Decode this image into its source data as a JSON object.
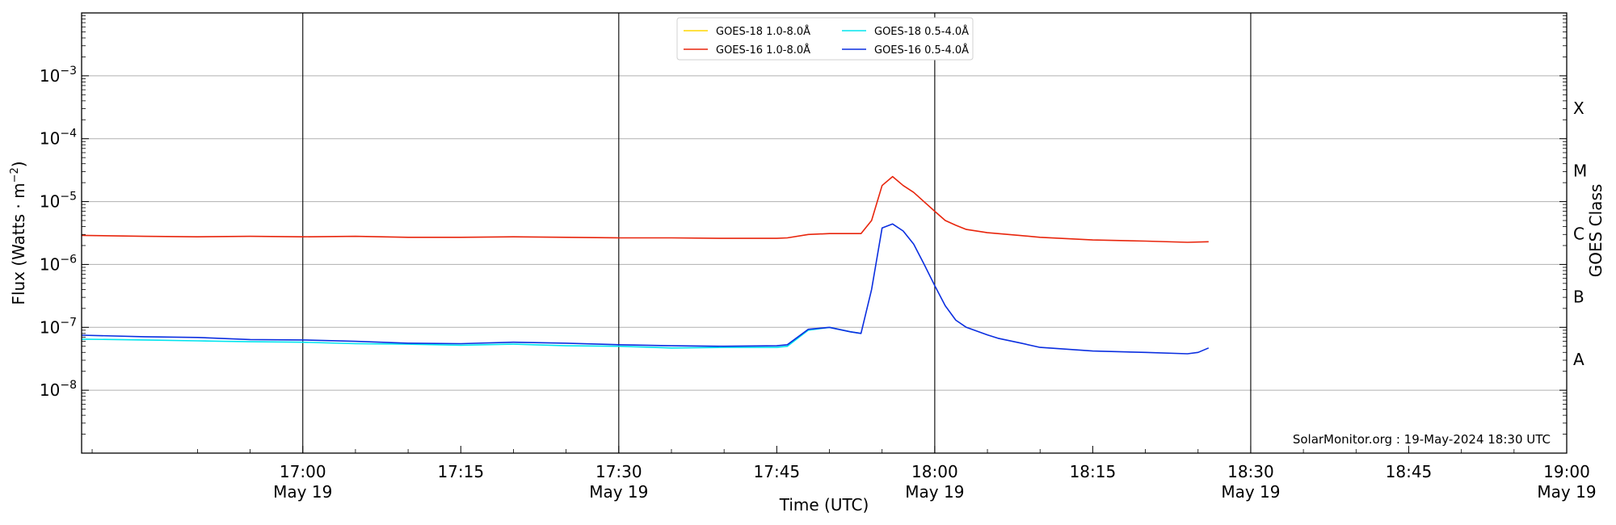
{
  "chart_data": {
    "type": "line",
    "ylabel_main": "Flux (Watts · m",
    "ylabel_sup": "−2",
    "ylabel_close": ")",
    "xlabel": "Time (UTC)",
    "right_ylabel": "GOES Class",
    "credit": "SolarMonitor.org : 19-May-2024 18:30 UTC",
    "x_range": [
      "16:39",
      "19:00"
    ],
    "y_scale": "log",
    "ylim": [
      1e-09,
      0.01
    ],
    "y_ticks": [
      {
        "value": 1e-08,
        "base": "10",
        "exp": "−8"
      },
      {
        "value": 1e-07,
        "base": "10",
        "exp": "−7"
      },
      {
        "value": 1e-06,
        "base": "10",
        "exp": "−6"
      },
      {
        "value": 1e-05,
        "base": "10",
        "exp": "−5"
      },
      {
        "value": 0.0001,
        "base": "10",
        "exp": "−4"
      },
      {
        "value": 0.001,
        "base": "10",
        "exp": "−3"
      }
    ],
    "x_ticks": [
      {
        "time": "17:00",
        "label": "17:00",
        "date": "May 19"
      },
      {
        "time": "17:15",
        "label": "17:15",
        "date": ""
      },
      {
        "time": "17:30",
        "label": "17:30",
        "date": "May 19"
      },
      {
        "time": "17:45",
        "label": "17:45",
        "date": ""
      },
      {
        "time": "18:00",
        "label": "18:00",
        "date": "May 19"
      },
      {
        "time": "18:15",
        "label": "18:15",
        "date": ""
      },
      {
        "time": "18:30",
        "label": "18:30",
        "date": "May 19"
      },
      {
        "time": "18:45",
        "label": "18:45",
        "date": ""
      },
      {
        "time": "19:00",
        "label": "19:00",
        "date": "May 19"
      }
    ],
    "vlines": [
      "17:00",
      "17:30",
      "18:00",
      "18:30"
    ],
    "grid": "horizontal at major ticks",
    "goes_classes": [
      {
        "label": "A",
        "value": 1e-08
      },
      {
        "label": "B",
        "value": 1e-07
      },
      {
        "label": "C",
        "value": 1e-06
      },
      {
        "label": "M",
        "value": 1e-05
      },
      {
        "label": "X",
        "value": 0.0001
      }
    ],
    "legend_position": "top-center",
    "series": [
      {
        "name": "GOES-18 1.0-8.0Å",
        "color": "#ffd700",
        "points": []
      },
      {
        "name": "GOES-18 0.5-4.0Å",
        "color": "#00e5ee",
        "points": [
          [
            "16:39",
            6.5e-08
          ],
          [
            "16:45",
            6.3e-08
          ],
          [
            "16:50",
            6.1e-08
          ],
          [
            "16:55",
            5.9e-08
          ],
          [
            "17:00",
            5.8e-08
          ],
          [
            "17:05",
            5.5e-08
          ],
          [
            "17:10",
            5.4e-08
          ],
          [
            "17:15",
            5.2e-08
          ],
          [
            "17:20",
            5.4e-08
          ],
          [
            "17:25",
            5.1e-08
          ],
          [
            "17:30",
            5e-08
          ],
          [
            "17:35",
            4.7e-08
          ],
          [
            "17:40",
            4.8e-08
          ],
          [
            "17:45",
            4.8e-08
          ],
          [
            "17:46",
            5e-08
          ],
          [
            "17:48",
            9e-08
          ],
          [
            "17:50",
            1e-07
          ],
          [
            "17:52",
            8.5e-08
          ],
          [
            "17:53",
            8e-08
          ]
        ]
      },
      {
        "name": "GOES-16 1.0-8.0Å",
        "color": "#e8250c",
        "points": [
          [
            "16:39",
            2.9e-06
          ],
          [
            "16:45",
            2.8e-06
          ],
          [
            "16:50",
            2.75e-06
          ],
          [
            "16:55",
            2.8e-06
          ],
          [
            "17:00",
            2.75e-06
          ],
          [
            "17:05",
            2.8e-06
          ],
          [
            "17:10",
            2.7e-06
          ],
          [
            "17:15",
            2.7e-06
          ],
          [
            "17:20",
            2.75e-06
          ],
          [
            "17:25",
            2.7e-06
          ],
          [
            "17:30",
            2.65e-06
          ],
          [
            "17:35",
            2.65e-06
          ],
          [
            "17:40",
            2.6e-06
          ],
          [
            "17:45",
            2.6e-06
          ],
          [
            "17:46",
            2.65e-06
          ],
          [
            "17:48",
            3e-06
          ],
          [
            "17:50",
            3.1e-06
          ],
          [
            "17:53",
            3.1e-06
          ],
          [
            "17:54",
            5e-06
          ],
          [
            "17:55",
            1.8e-05
          ],
          [
            "17:56",
            2.5e-05
          ],
          [
            "17:57",
            1.8e-05
          ],
          [
            "17:58",
            1.4e-05
          ],
          [
            "18:00",
            7e-06
          ],
          [
            "18:01",
            5e-06
          ],
          [
            "18:02",
            4.2e-06
          ],
          [
            "18:03",
            3.6e-06
          ],
          [
            "18:05",
            3.2e-06
          ],
          [
            "18:08",
            2.9e-06
          ],
          [
            "18:10",
            2.7e-06
          ],
          [
            "18:15",
            2.45e-06
          ],
          [
            "18:20",
            2.35e-06
          ],
          [
            "18:24",
            2.25e-06
          ],
          [
            "18:26",
            2.3e-06
          ]
        ]
      },
      {
        "name": "GOES-16 0.5-4.0Å",
        "color": "#0a2ee0",
        "points": [
          [
            "16:39",
            7.5e-08
          ],
          [
            "16:45",
            7.1e-08
          ],
          [
            "16:50",
            6.9e-08
          ],
          [
            "16:55",
            6.4e-08
          ],
          [
            "17:00",
            6.3e-08
          ],
          [
            "17:05",
            6e-08
          ],
          [
            "17:10",
            5.6e-08
          ],
          [
            "17:15",
            5.5e-08
          ],
          [
            "17:20",
            5.8e-08
          ],
          [
            "17:25",
            5.6e-08
          ],
          [
            "17:30",
            5.3e-08
          ],
          [
            "17:35",
            5.1e-08
          ],
          [
            "17:40",
            5e-08
          ],
          [
            "17:45",
            5.1e-08
          ],
          [
            "17:46",
            5.3e-08
          ],
          [
            "17:48",
            9.3e-08
          ],
          [
            "17:50",
            1e-07
          ],
          [
            "17:52",
            8.5e-08
          ],
          [
            "17:53",
            8e-08
          ],
          [
            "17:54",
            4e-07
          ],
          [
            "17:55",
            3.8e-06
          ],
          [
            "17:56",
            4.4e-06
          ],
          [
            "17:57",
            3.4e-06
          ],
          [
            "17:58",
            2.1e-06
          ],
          [
            "17:59",
            1e-06
          ],
          [
            "18:00",
            4.6e-07
          ],
          [
            "18:01",
            2.2e-07
          ],
          [
            "18:02",
            1.3e-07
          ],
          [
            "18:03",
            1e-07
          ],
          [
            "18:05",
            7.6e-08
          ],
          [
            "18:06",
            6.7e-08
          ],
          [
            "18:08",
            5.7e-08
          ],
          [
            "18:10",
            4.8e-08
          ],
          [
            "18:15",
            4.2e-08
          ],
          [
            "18:20",
            4e-08
          ],
          [
            "18:24",
            3.8e-08
          ],
          [
            "18:25",
            4e-08
          ],
          [
            "18:26",
            4.7e-08
          ]
        ]
      }
    ]
  }
}
